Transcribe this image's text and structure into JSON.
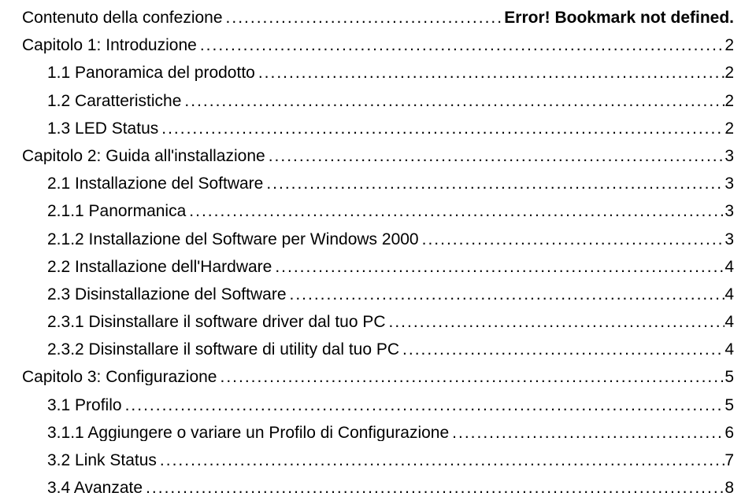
{
  "dots": "................................................................................................................................................................................................................................",
  "toc": [
    {
      "label": "Contenuto della confezione",
      "page": "Error! Bookmark not defined.",
      "indent": 0,
      "errorStyle": true
    },
    {
      "label": "Capitolo 1: Introduzione",
      "page": "2",
      "indent": 0
    },
    {
      "label": "1.1 Panoramica del prodotto",
      "page": "2",
      "indent": 1
    },
    {
      "label": "1.2 Caratteristiche",
      "page": "2",
      "indent": 1
    },
    {
      "label": "1.3 LED Status",
      "page": "2",
      "indent": 1
    },
    {
      "label": "Capitolo 2: Guida all'installazione",
      "page": "3",
      "indent": 0
    },
    {
      "label": "2.1 Installazione del Software",
      "page": "3",
      "indent": 1
    },
    {
      "label": "2.1.1 Panormanica",
      "page": "3",
      "indent": 1
    },
    {
      "label": "2.1.2 Installazione del Software per Windows 2000",
      "page": "3",
      "indent": 1
    },
    {
      "label": "2.2 Installazione dell'Hardware",
      "page": "4",
      "indent": 1
    },
    {
      "label": "2.3 Disinstallazione del Software",
      "page": "4",
      "indent": 1
    },
    {
      "label": "2.3.1 Disinstallare il software driver dal tuo PC",
      "page": "4",
      "indent": 1
    },
    {
      "label": "2.3.2 Disinstallare il software di utility dal tuo PC",
      "page": "4",
      "indent": 1
    },
    {
      "label": "Capitolo 3: Configurazione",
      "page": "5",
      "indent": 0
    },
    {
      "label": "3.1 Profilo",
      "page": "5",
      "indent": 1
    },
    {
      "label": "3.1.1 Aggiungere o variare un Profilo di Configurazione",
      "page": "6",
      "indent": 1
    },
    {
      "label": "3.2 Link Status",
      "page": "7",
      "indent": 1
    },
    {
      "label": "3.4 Avanzate",
      "page": "8",
      "indent": 1
    }
  ]
}
